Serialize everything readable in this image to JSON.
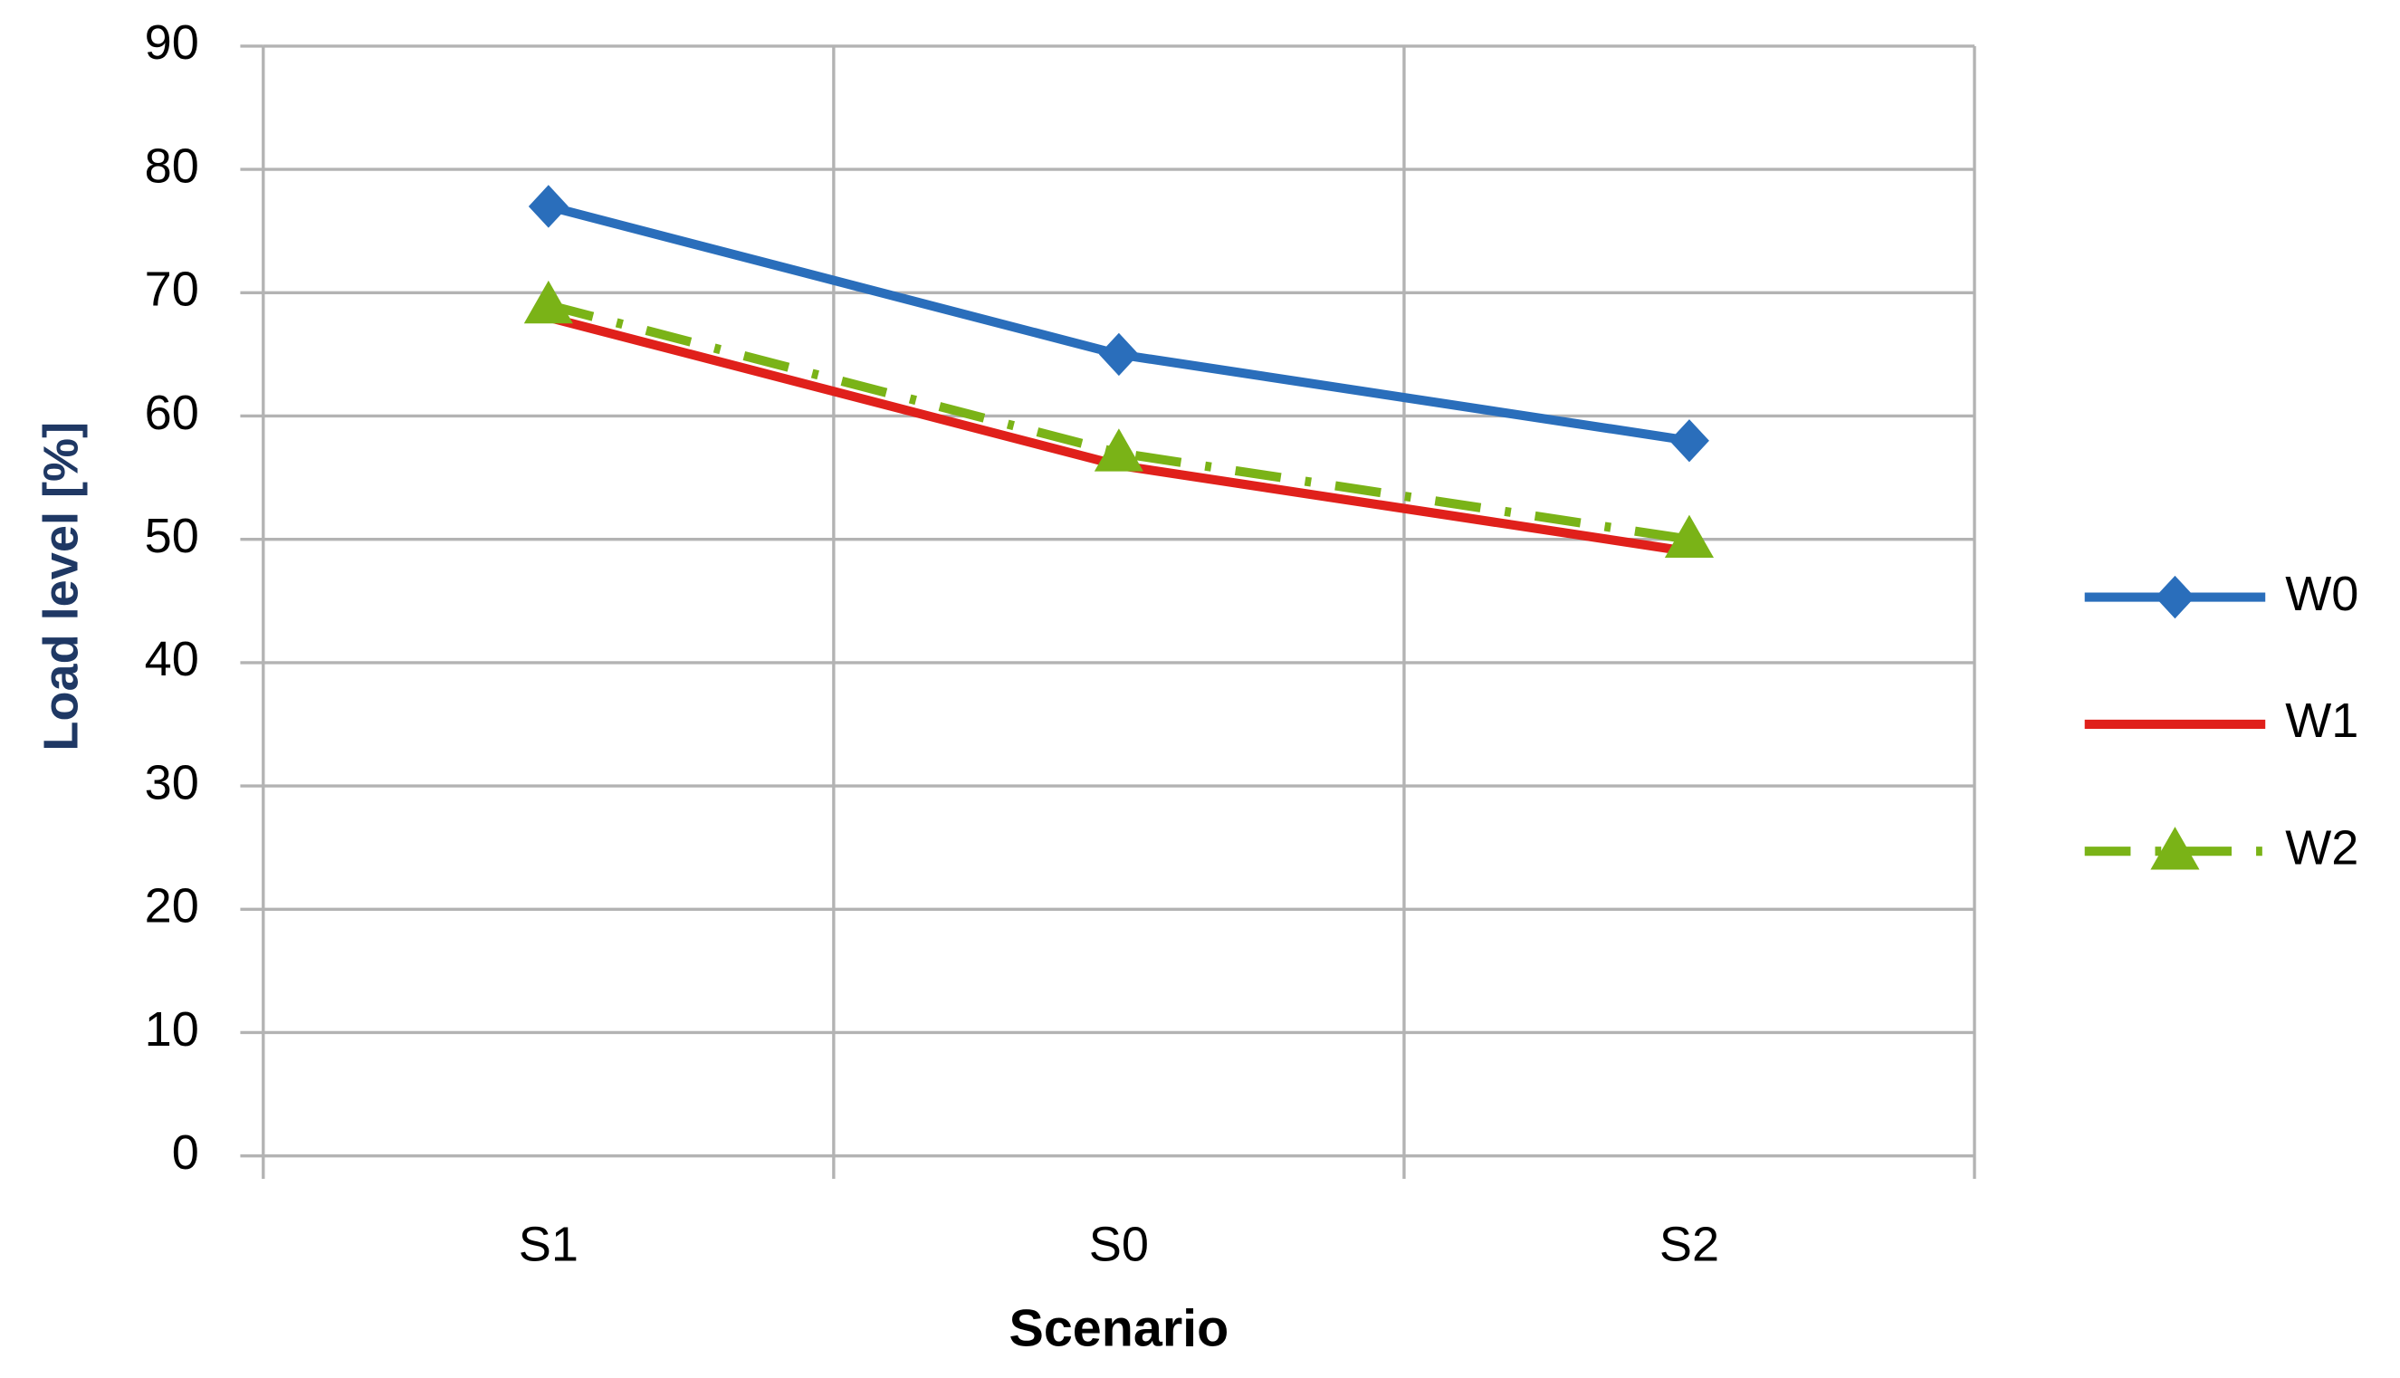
{
  "chart_data": {
    "type": "line",
    "x_label": "Scenario",
    "y_label": "Load level [%]",
    "categories": [
      "S1",
      "S0",
      "S2"
    ],
    "series": [
      {
        "name": "W0",
        "color": "#2a6ebb",
        "marker": "diamond",
        "dash": "solid",
        "values": [
          77,
          65,
          58
        ]
      },
      {
        "name": "W1",
        "color": "#e0201b",
        "marker": "none",
        "dash": "solid",
        "values": [
          68,
          56,
          49
        ]
      },
      {
        "name": "W2",
        "color": "#7ab317",
        "marker": "triangle",
        "dash": "dashdot",
        "values": [
          69,
          57,
          50
        ]
      }
    ],
    "ylim": [
      0,
      90
    ],
    "yticks": [
      0,
      10,
      20,
      30,
      40,
      50,
      60,
      70,
      80,
      90
    ],
    "grid": true,
    "legend": "right"
  }
}
